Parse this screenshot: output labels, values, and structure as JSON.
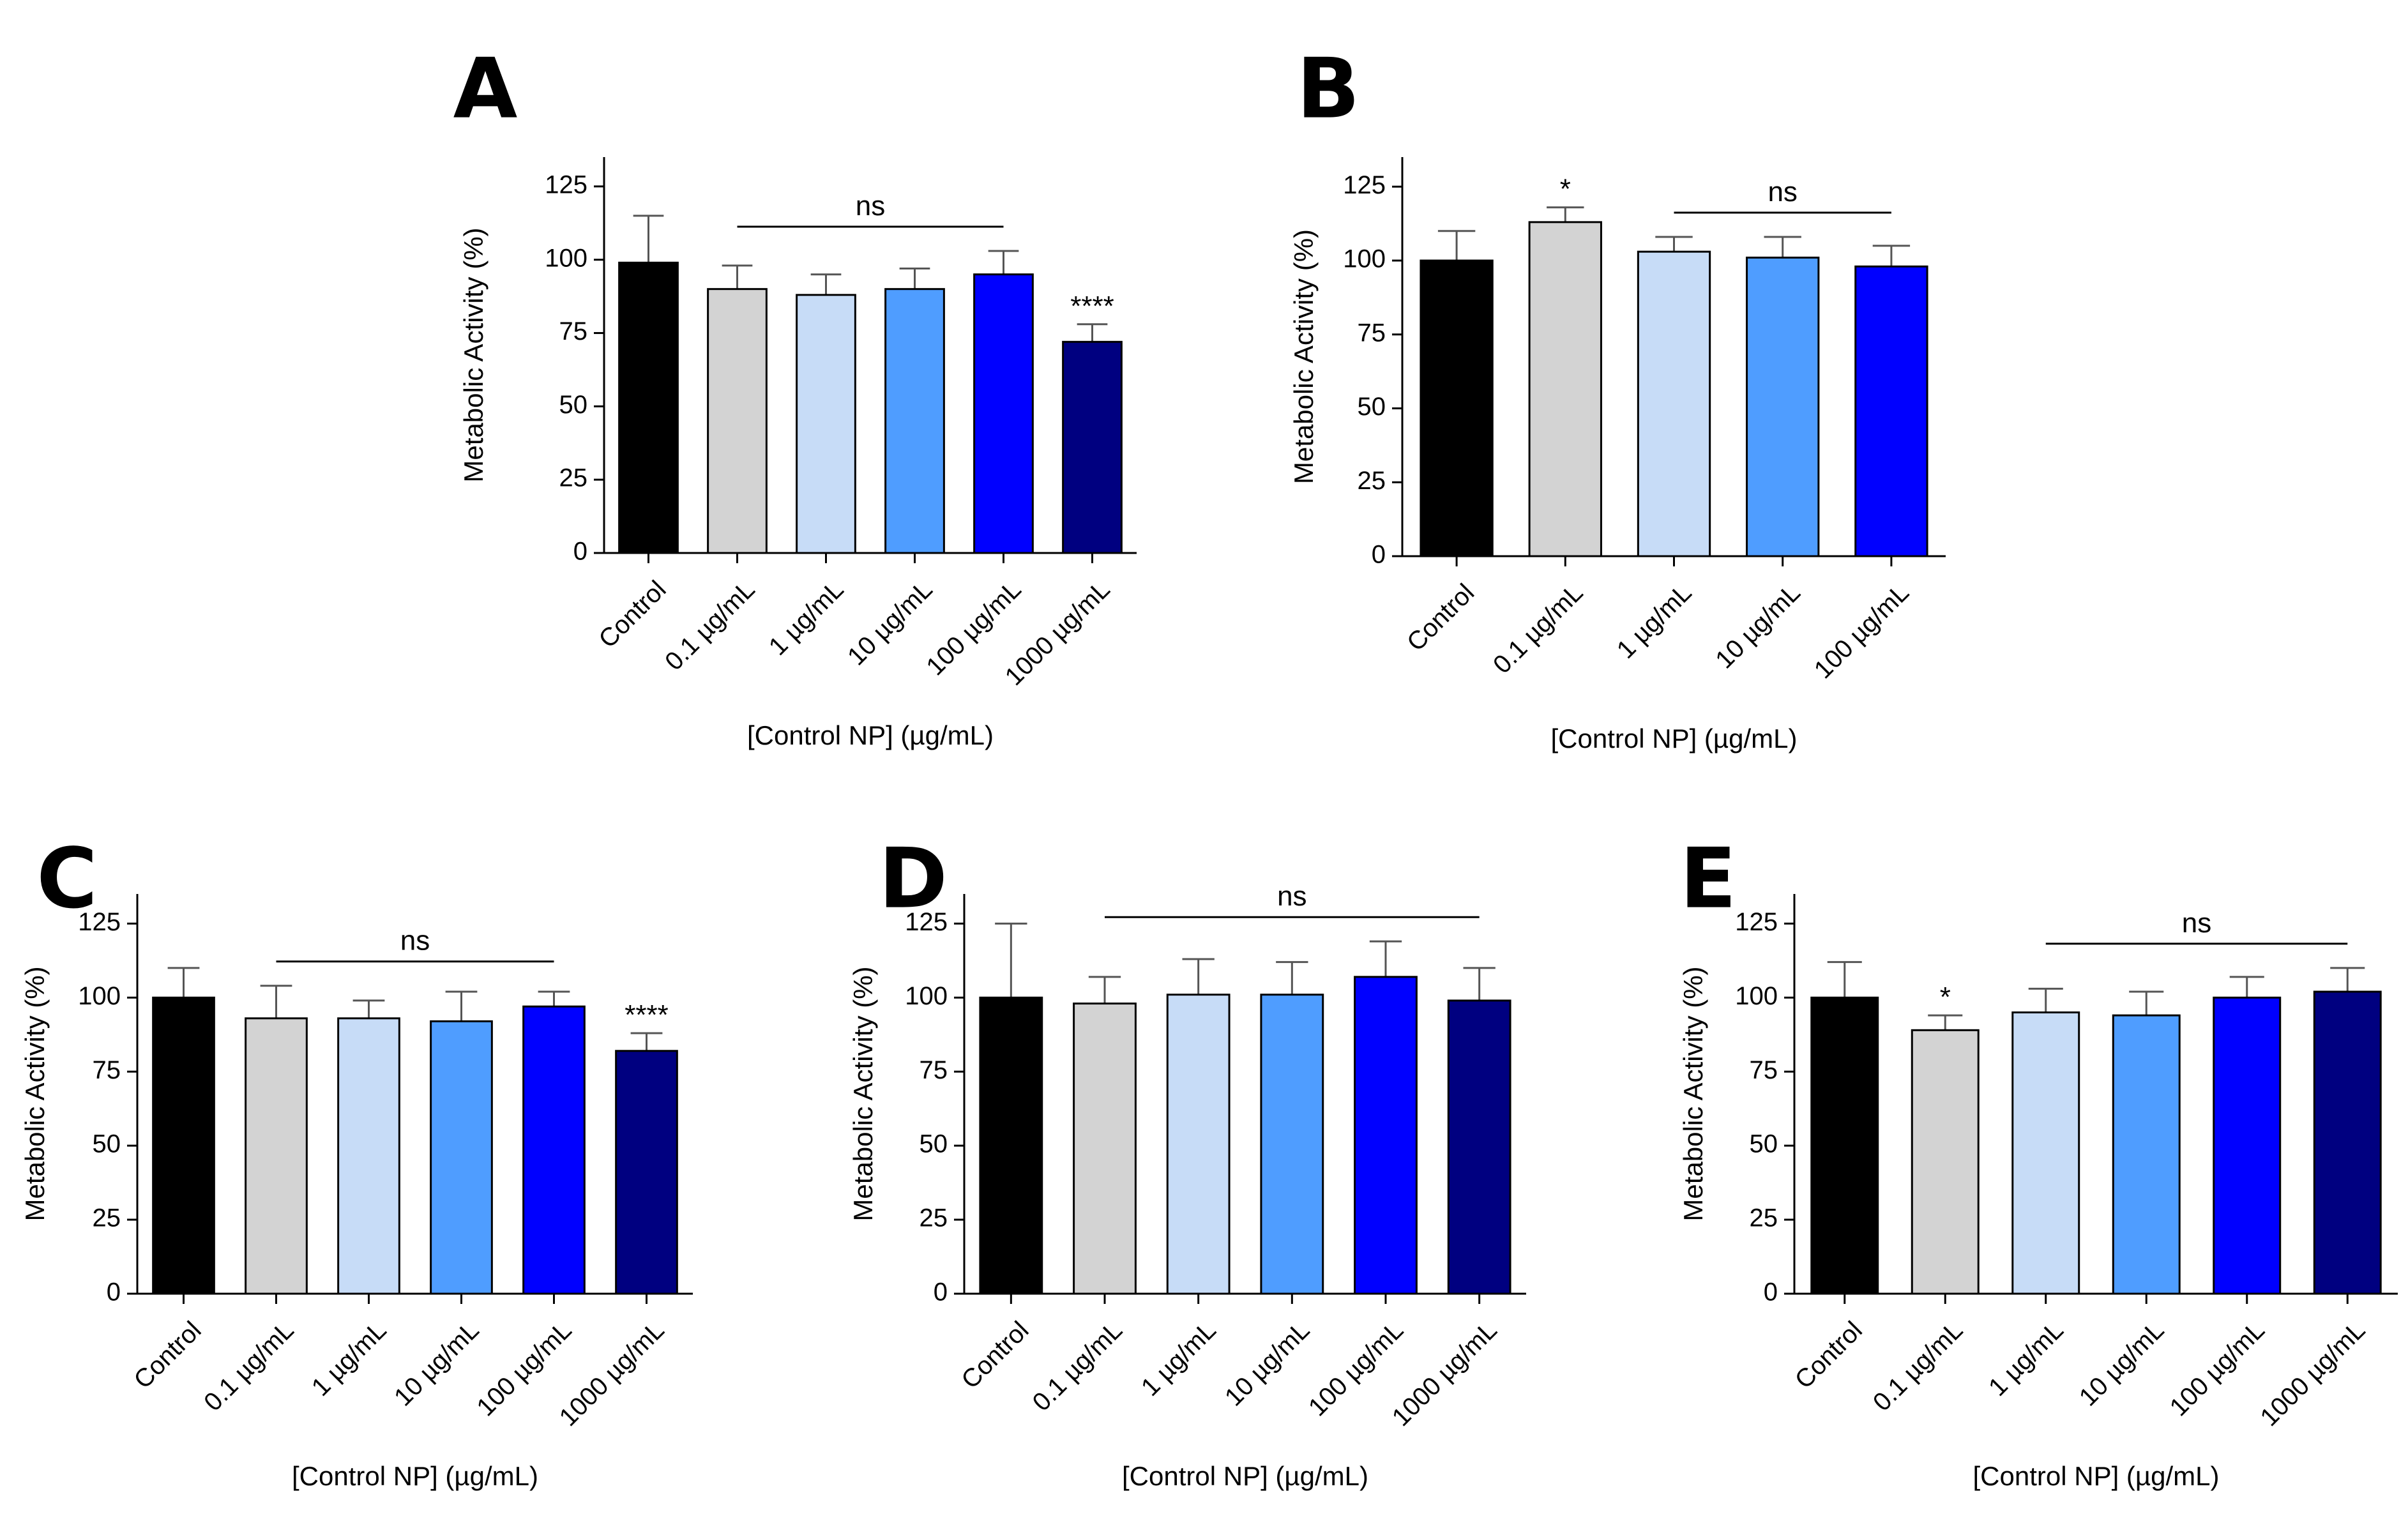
{
  "colors": {
    "Control": "#000000",
    "0.1": "#d3d3d3",
    "1": "#c7dcf7",
    "10": "#4f9dff",
    "100": "#0000ff",
    "1000": "#000080"
  },
  "chart_data": [
    {
      "type": "bar",
      "panel": "A",
      "title": "A",
      "xlabel": "[Control NP] (µg/mL)",
      "ylabel": "Metabolic Activity (%)",
      "ylim": [
        0,
        135
      ],
      "yticks": [
        "0",
        "25",
        "50",
        "75",
        "100",
        "125"
      ],
      "categories": [
        "Control",
        "0.1 µg/mL",
        "1 µg/mL",
        "10 µg/mL",
        "100 µg/mL",
        "1000 µg/mL"
      ],
      "color_keys": [
        "Control",
        "0.1",
        "1",
        "10",
        "100",
        "1000"
      ],
      "values": [
        99,
        90,
        88,
        90,
        95,
        72
      ],
      "errors": [
        16,
        8,
        7,
        7,
        8,
        6
      ],
      "annotations": [
        {
          "text": "ns",
          "type": "bracket",
          "from": 1,
          "to": 4
        },
        {
          "text": "****",
          "type": "star",
          "at": 5
        }
      ]
    },
    {
      "type": "bar",
      "panel": "B",
      "title": "B",
      "xlabel": "[Control NP] (µg/mL)",
      "ylabel": "Metabolic Activity (%)",
      "ylim": [
        0,
        135
      ],
      "yticks": [
        "0",
        "25",
        "50",
        "75",
        "100",
        "125"
      ],
      "categories": [
        "Control",
        "0.1 µg/mL",
        "1 µg/mL",
        "10 µg/mL",
        "100 µg/mL"
      ],
      "color_keys": [
        "Control",
        "0.1",
        "1",
        "10",
        "100"
      ],
      "values": [
        100,
        113,
        103,
        101,
        98
      ],
      "errors": [
        10,
        5,
        5,
        7,
        7
      ],
      "annotations": [
        {
          "text": "*",
          "type": "star",
          "at": 1
        },
        {
          "text": "ns",
          "type": "bracket",
          "from": 2,
          "to": 4
        }
      ]
    },
    {
      "type": "bar",
      "panel": "C",
      "title": "C",
      "xlabel": "[Control NP] (µg/mL)",
      "ylabel": "Metabolic Activity (%)",
      "ylim": [
        0,
        135
      ],
      "yticks": [
        "0",
        "25",
        "50",
        "75",
        "100",
        "125"
      ],
      "categories": [
        "Control",
        "0.1 µg/mL",
        "1 µg/mL",
        "10 µg/mL",
        "100 µg/mL",
        "1000 µg/mL"
      ],
      "color_keys": [
        "Control",
        "0.1",
        "1",
        "10",
        "100",
        "1000"
      ],
      "values": [
        100,
        93,
        93,
        92,
        97,
        82
      ],
      "errors": [
        10,
        11,
        6,
        10,
        5,
        6
      ],
      "annotations": [
        {
          "text": "ns",
          "type": "bracket",
          "from": 1,
          "to": 4
        },
        {
          "text": "****",
          "type": "star",
          "at": 5
        }
      ]
    },
    {
      "type": "bar",
      "panel": "D",
      "title": "D",
      "xlabel": "[Control NP] (µg/mL)",
      "ylabel": "Metabolic Activity (%)",
      "ylim": [
        0,
        135
      ],
      "yticks": [
        "0",
        "25",
        "50",
        "75",
        "100",
        "125"
      ],
      "categories": [
        "Control",
        "0.1 µg/mL",
        "1 µg/mL",
        "10 µg/mL",
        "100 µg/mL",
        "1000 µg/mL"
      ],
      "color_keys": [
        "Control",
        "0.1",
        "1",
        "10",
        "100",
        "1000"
      ],
      "values": [
        100,
        98,
        101,
        101,
        107,
        99
      ],
      "errors": [
        25,
        9,
        12,
        11,
        12,
        11
      ],
      "annotations": [
        {
          "text": "ns",
          "type": "bracket",
          "from": 1,
          "to": 5
        }
      ]
    },
    {
      "type": "bar",
      "panel": "E",
      "title": "E",
      "xlabel": "[Control NP] (µg/mL)",
      "ylabel": "Metabolic Activity (%)",
      "ylim": [
        0,
        135
      ],
      "yticks": [
        "0",
        "25",
        "50",
        "75",
        "100",
        "125"
      ],
      "categories": [
        "Control",
        "0.1 µg/mL",
        "1 µg/mL",
        "10 µg/mL",
        "100 µg/mL",
        "1000 µg/mL"
      ],
      "color_keys": [
        "Control",
        "0.1",
        "1",
        "10",
        "100",
        "1000"
      ],
      "values": [
        100,
        89,
        95,
        94,
        100,
        102
      ],
      "errors": [
        12,
        5,
        8,
        8,
        7,
        8
      ],
      "annotations": [
        {
          "text": "*",
          "type": "star",
          "at": 1
        },
        {
          "text": "ns",
          "type": "bracket",
          "from": 2,
          "to": 5
        }
      ]
    }
  ]
}
